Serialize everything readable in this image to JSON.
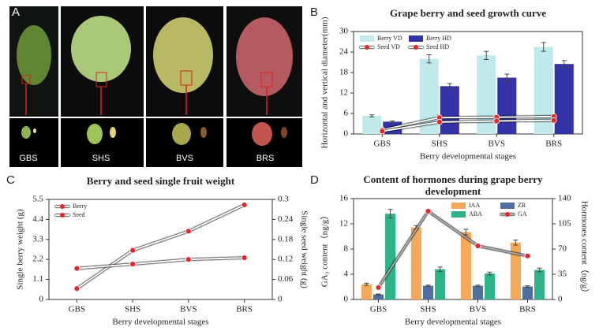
{
  "photo_panel": {
    "label": "A",
    "stages": [
      "GBS",
      "SHS",
      "BVS",
      "BRS"
    ]
  },
  "chart_data": [
    {
      "type": "bar",
      "panel_label": "B",
      "title": "Grape berry and seed growth curve",
      "xlabel": "Berry developmental stages",
      "ylabel": "Horizontal and vertical diameter(mm)",
      "categories": [
        "GBS",
        "SHS",
        "BVS",
        "BRS"
      ],
      "ylim": [
        0,
        30
      ],
      "yticks": [
        0,
        6,
        12,
        18,
        24,
        30
      ],
      "legend": "upper left",
      "series": [
        {
          "name": "Berry VD",
          "color": "#bfe9ea",
          "values": [
            5.3,
            22,
            23,
            25.5
          ],
          "errors": [
            0.3,
            1.2,
            1.2,
            1.3
          ]
        },
        {
          "name": "Berry HD",
          "color": "#3434a8",
          "values": [
            3.6,
            14,
            16.5,
            20.5
          ],
          "errors": [
            0.2,
            0.8,
            1.0,
            1.0
          ]
        },
        {
          "name": "Seed VD",
          "style": "line",
          "color": "#ffffff",
          "marker_color": "#e8262a",
          "values": [
            1.2,
            4.8,
            4.9,
            5.1
          ],
          "errors": [
            0.4,
            0.7,
            0.6,
            0.6
          ]
        },
        {
          "name": "Seed HD",
          "style": "line",
          "color": "#ffffff",
          "marker_color": "#e8262a",
          "values": [
            0.8,
            3.5,
            3.8,
            4.0
          ],
          "errors": [
            0.3,
            0.6,
            0.6,
            0.6
          ]
        }
      ]
    },
    {
      "type": "line",
      "panel_label": "C",
      "title": "Berry and seed single fruit weight",
      "xlabel": "Berry developmental stages",
      "ylabel": "Single berry weight (g)",
      "y2label": "Single seed weight (g)",
      "categories": [
        "GBS",
        "SHS",
        "BVS",
        "BRS"
      ],
      "ylim": [
        0,
        5.5
      ],
      "yticks": [
        0,
        1.1,
        2.2,
        3.3,
        4.4,
        5.5
      ],
      "y2lim": [
        0,
        0.3
      ],
      "y2ticks": [
        0,
        0.06,
        0.12,
        0.18,
        0.24,
        0.3
      ],
      "legend": "upper left",
      "series": [
        {
          "name": "Berry",
          "style": "line",
          "color": "#ffffff",
          "marker_color": "#e8262a",
          "values": [
            0.6,
            2.7,
            3.75,
            5.2
          ]
        },
        {
          "name": "Seed",
          "style": "line",
          "axis": "y2",
          "color": "#ffffff",
          "marker_color": "#e8262a",
          "values": [
            0.093,
            0.106,
            0.12,
            0.125
          ]
        }
      ]
    },
    {
      "type": "bar",
      "panel_label": "D",
      "title": [
        "Content of hormones during grape berry",
        "development"
      ],
      "xlabel": "Berry developmental stages",
      "ylabel": "GA₃ content（ng/g）",
      "y2label": "Hormones content（ng/g）",
      "categories": [
        "GBS",
        "SHS",
        "BVS",
        "BRS"
      ],
      "ylim": [
        0,
        16
      ],
      "yticks": [
        0,
        4,
        8,
        12,
        16
      ],
      "y2lim": [
        0,
        140
      ],
      "y2ticks": [
        0,
        35,
        70,
        105,
        140
      ],
      "legend": "upper right",
      "series": [
        {
          "name": "IAA",
          "axis": "y2",
          "color": "#f4a85a",
          "values": [
            21,
            100,
            93.5,
            79
          ],
          "errors": [
            1.5,
            2.5,
            4,
            3.5
          ]
        },
        {
          "name": "ZR",
          "axis": "y2",
          "color": "#4e6fa0",
          "values": [
            7,
            19,
            19,
            18
          ],
          "errors": [
            0.6,
            1,
            1,
            1
          ]
        },
        {
          "name": "ABA",
          "axis": "y2",
          "color": "#2db38a",
          "values": [
            119,
            42,
            36,
            41
          ],
          "errors": [
            6,
            3,
            2,
            2.5
          ]
        },
        {
          "name": "GA",
          "style": "line",
          "color": "#b0b0b0",
          "marker_color": "#e8262a",
          "values": [
            1.9,
            14,
            8.5,
            6.9
          ]
        }
      ]
    }
  ]
}
